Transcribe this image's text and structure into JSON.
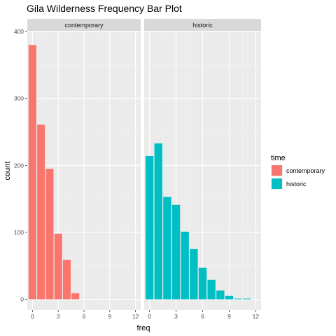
{
  "chart_data": {
    "type": "bar",
    "title": "Gila Wilderness Frequency Bar Plot",
    "xlabel": "freq",
    "ylabel": "count",
    "x_ticks": [
      0,
      3,
      6,
      9,
      12
    ],
    "y_ticks": [
      0,
      100,
      200,
      300,
      400
    ],
    "xlim": [
      -0.6,
      12.6
    ],
    "ylim": [
      0,
      400
    ],
    "grid": true,
    "facets": [
      "contemporary",
      "historic"
    ],
    "legend": {
      "title": "time",
      "position": "right",
      "entries": [
        {
          "label": "contemporary",
          "color": "#F8766D"
        },
        {
          "label": "historic",
          "color": "#00BFC4"
        }
      ]
    },
    "series": [
      {
        "name": "contemporary",
        "color": "#F8766D",
        "x": [
          0,
          1,
          2,
          3,
          4,
          5
        ],
        "values": [
          380,
          261,
          195,
          98,
          59,
          9
        ]
      },
      {
        "name": "historic",
        "color": "#00BFC4",
        "x": [
          0,
          1,
          2,
          3,
          4,
          5,
          6,
          7,
          8,
          9,
          10,
          11
        ],
        "values": [
          214,
          233,
          153,
          141,
          101,
          75,
          47,
          29,
          13,
          5,
          1,
          1
        ]
      }
    ]
  }
}
